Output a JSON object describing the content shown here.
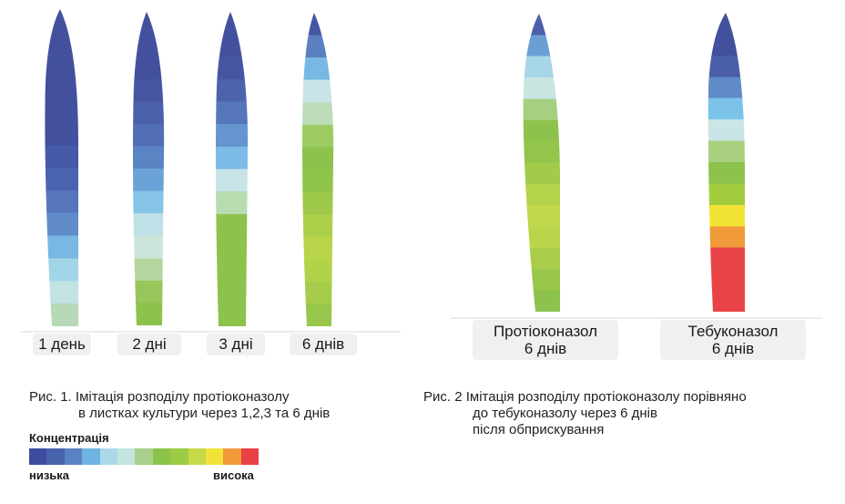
{
  "figure1": {
    "labels": [
      "1 день",
      "2 дні",
      "3 дні",
      "6 днів"
    ],
    "caption_line1": "Рис. 1. Імітація розподілу протіоконазолу",
    "caption_line2": "в листках культури через 1,2,3 та 6 днів"
  },
  "figure2": {
    "labels": [
      {
        "line1": "Протіоконазол",
        "line2": "6 днів"
      },
      {
        "line1": "Тебуконазол",
        "line2": "6 днів"
      }
    ],
    "caption_line1": "Рис. 2  Імітація розподілу протіоконазолу порівняно",
    "caption_line2": "до тебуконазолу через 6 днів",
    "caption_line3": "після обприскування"
  },
  "legend": {
    "title": "Концентрація",
    "low": "низька",
    "high": "висока",
    "colors": [
      "#3d4c9e",
      "#4a63ad",
      "#5a82c3",
      "#6fb3e3",
      "#aad8e8",
      "#c4e4e0",
      "#a8d08a",
      "#8dc24c",
      "#9ccb45",
      "#c6d94a",
      "#f2e33b",
      "#f19a3a",
      "#e84045"
    ]
  },
  "leaves": [
    {
      "name": "day-1",
      "stops": [
        "#42509e",
        "#42509e",
        "#42509e",
        "#42509e",
        "#42509e",
        "#42509e",
        "#465aa7",
        "#4b63ae",
        "#5576bb",
        "#5f8cc9",
        "#79b7e4",
        "#a3d5e8",
        "#c2e2e4",
        "#b7d9b8"
      ]
    },
    {
      "name": "day-2",
      "stops": [
        "#42509e",
        "#42509e",
        "#42509e",
        "#4656a3",
        "#4b60ab",
        "#526eb6",
        "#5b84c4",
        "#6aa2d8",
        "#85c4e6",
        "#bfe0e6",
        "#cde6dc",
        "#b4d7a0",
        "#97c65a",
        "#8dc24c"
      ]
    },
    {
      "name": "day-3",
      "stops": [
        "#42509e",
        "#42509e",
        "#4656a3",
        "#4c62ad",
        "#5676bb",
        "#6595cf",
        "#7dbce6",
        "#c8e4e8",
        "#b8dcb0",
        "#8dc24c",
        "#8dc24c",
        "#8dc24c",
        "#8dc24c",
        "#8dc24c"
      ]
    },
    {
      "name": "day-6",
      "stops": [
        "#4656a3",
        "#5a80c2",
        "#78b8e4",
        "#c7e4e8",
        "#bcdcb8",
        "#9dcb62",
        "#8dc24c",
        "#90c44c",
        "#9ec94b",
        "#acd04a",
        "#b9d54a",
        "#b2d24a",
        "#a6cc4b",
        "#98c64b"
      ]
    },
    {
      "name": "prothioconazole",
      "stops": [
        "#4d60ab",
        "#6a9fd6",
        "#a7d6e8",
        "#c8e5e2",
        "#a6cf80",
        "#8dc24c",
        "#93c54b",
        "#a3cb4a",
        "#b4d24a",
        "#c0d84b",
        "#bbd54b",
        "#a9cd4b",
        "#99c74c",
        "#8dc24c"
      ]
    },
    {
      "name": "tebuconazole",
      "stops": [
        "#42509e",
        "#42509e",
        "#4a5ea9",
        "#5f8bc8",
        "#7cc3ea",
        "#c9e5e6",
        "#a9d07e",
        "#8dc24c",
        "#a4cd3e",
        "#f2e336",
        "#f19a3a",
        "#e84448",
        "#e84448",
        "#e84448"
      ]
    }
  ]
}
